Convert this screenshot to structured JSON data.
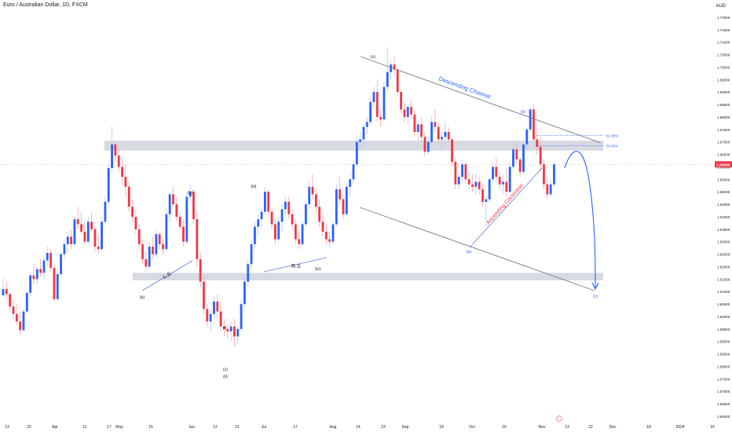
{
  "header": {
    "title": "Euro / Australian Dollar, 1D, FXCM",
    "currency": "AUD"
  },
  "colors": {
    "up": "#2962ff",
    "down": "#f23645",
    "up_wick": "#b4c4ff",
    "down_wick": "#f7a1a8",
    "zone": "#d1d4dc",
    "annotation_blue": "#2962ff",
    "annotation_red": "#f23645",
    "line": "#131722"
  },
  "chart_data": {
    "type": "candlestick",
    "title": "Euro / Australian Dollar, 1D, FXCM",
    "y_axis": {
      "currency": "AUD",
      "range": [
        1.56,
        1.725
      ],
      "ticks": [
        "1.72000",
        "1.71500",
        "1.71000",
        "1.70500",
        "1.70000",
        "1.69500",
        "1.69000",
        "1.68500",
        "1.68000",
        "1.67500",
        "1.67000",
        "1.66500",
        "1.66000",
        "1.65500",
        "1.65000",
        "1.64500",
        "1.64000",
        "1.63500",
        "1.63000",
        "1.62500",
        "1.62000",
        "1.61500",
        "1.61000",
        "1.60500",
        "1.60000",
        "1.59500",
        "1.59000",
        "1.58500",
        "1.58000",
        "1.57500",
        "1.57000",
        "1.56500",
        "1.56000"
      ]
    },
    "x_axis": {
      "tick_labels": [
        "13",
        "22",
        "Apr",
        "11",
        "17",
        "May",
        "15",
        "Jun",
        "12",
        "21",
        "Jul",
        "17",
        "Aug",
        "14",
        "23",
        "Sep",
        "18",
        "Oct",
        "16",
        "Nov",
        "13",
        "22",
        "Dec",
        "18",
        "2024",
        "15"
      ]
    },
    "last_price": "1.66099",
    "zones": [
      {
        "name": "resistance-zone",
        "from": 1.6665,
        "to": 1.6705
      },
      {
        "name": "support-zone",
        "from": 1.6145,
        "to": 1.6175
      }
    ],
    "levels": [
      {
        "label": "61.80%",
        "price": 1.6725
      },
      {
        "label": "50.00%",
        "price": 1.6685
      }
    ],
    "annotations": {
      "descending_channel": "Descending Channel",
      "ascending_correction": "Ascending Correction",
      "ls": "L.S",
      "rs": "R.S",
      "wave_labels": [
        "(a)",
        "(b)",
        "(iii)",
        "(iv)",
        "(v)",
        "(i)",
        "(c)",
        "(ii)",
        "(b)",
        "(a)",
        "(c)"
      ]
    },
    "candles": [
      [
        1.6085,
        1.6155,
        1.6075,
        1.611
      ],
      [
        1.611,
        1.614,
        1.607,
        1.609
      ],
      [
        1.609,
        1.6095,
        1.602,
        1.604
      ],
      [
        1.604,
        1.607,
        1.599,
        1.601
      ],
      [
        1.601,
        1.605,
        1.5965,
        1.598
      ],
      [
        1.598,
        1.602,
        1.5925,
        1.5945
      ],
      [
        1.5945,
        1.603,
        1.594,
        1.602
      ],
      [
        1.602,
        1.6105,
        1.601,
        1.6095
      ],
      [
        1.6095,
        1.6175,
        1.608,
        1.6165
      ],
      [
        1.6165,
        1.621,
        1.613,
        1.615
      ],
      [
        1.615,
        1.62,
        1.613,
        1.619
      ],
      [
        1.619,
        1.623,
        1.616,
        1.6175
      ],
      [
        1.6175,
        1.624,
        1.615,
        1.6225
      ],
      [
        1.6225,
        1.628,
        1.62,
        1.6255
      ],
      [
        1.6255,
        1.627,
        1.618,
        1.6195
      ],
      [
        1.6195,
        1.621,
        1.606,
        1.607
      ],
      [
        1.607,
        1.619,
        1.606,
        1.617
      ],
      [
        1.617,
        1.626,
        1.616,
        1.625
      ],
      [
        1.625,
        1.631,
        1.623,
        1.629
      ],
      [
        1.629,
        1.634,
        1.626,
        1.632
      ],
      [
        1.632,
        1.635,
        1.627,
        1.629
      ],
      [
        1.629,
        1.64,
        1.628,
        1.639
      ],
      [
        1.639,
        1.644,
        1.635,
        1.637
      ],
      [
        1.637,
        1.642,
        1.633,
        1.634
      ],
      [
        1.634,
        1.638,
        1.629,
        1.63
      ],
      [
        1.63,
        1.64,
        1.629,
        1.638
      ],
      [
        1.638,
        1.642,
        1.634,
        1.635
      ],
      [
        1.635,
        1.636,
        1.626,
        1.628
      ],
      [
        1.628,
        1.633,
        1.625,
        1.627
      ],
      [
        1.627,
        1.64,
        1.626,
        1.638
      ],
      [
        1.638,
        1.648,
        1.637,
        1.646
      ],
      [
        1.646,
        1.661,
        1.645,
        1.6595
      ],
      [
        1.6595,
        1.676,
        1.658,
        1.669
      ],
      [
        1.669,
        1.67,
        1.662,
        1.6645
      ],
      [
        1.6645,
        1.667,
        1.658,
        1.66
      ],
      [
        1.66,
        1.664,
        1.653,
        1.656
      ],
      [
        1.656,
        1.661,
        1.648,
        1.652
      ],
      [
        1.652,
        1.654,
        1.642,
        1.644
      ],
      [
        1.644,
        1.647,
        1.638,
        1.64
      ],
      [
        1.64,
        1.643,
        1.633,
        1.635
      ],
      [
        1.635,
        1.637,
        1.627,
        1.629
      ],
      [
        1.629,
        1.631,
        1.621,
        1.623
      ],
      [
        1.623,
        1.626,
        1.618,
        1.62
      ],
      [
        1.62,
        1.63,
        1.619,
        1.628
      ],
      [
        1.628,
        1.632,
        1.623,
        1.625
      ],
      [
        1.625,
        1.635,
        1.624,
        1.633
      ],
      [
        1.633,
        1.634,
        1.627,
        1.629
      ],
      [
        1.629,
        1.631,
        1.625,
        1.627
      ],
      [
        1.627,
        1.643,
        1.626,
        1.641
      ],
      [
        1.641,
        1.65,
        1.638,
        1.649
      ],
      [
        1.649,
        1.652,
        1.644,
        1.645
      ],
      [
        1.645,
        1.648,
        1.638,
        1.64
      ],
      [
        1.64,
        1.642,
        1.635,
        1.636
      ],
      [
        1.636,
        1.639,
        1.628,
        1.63
      ],
      [
        1.63,
        1.65,
        1.629,
        1.648
      ],
      [
        1.648,
        1.653,
        1.646,
        1.65
      ],
      [
        1.65,
        1.651,
        1.637,
        1.639
      ],
      [
        1.639,
        1.642,
        1.62,
        1.623
      ],
      [
        1.623,
        1.626,
        1.612,
        1.614
      ],
      [
        1.614,
        1.616,
        1.601,
        1.603
      ],
      [
        1.603,
        1.605,
        1.596,
        1.598
      ],
      [
        1.598,
        1.603,
        1.594,
        1.601
      ],
      [
        1.601,
        1.608,
        1.599,
        1.606
      ],
      [
        1.606,
        1.609,
        1.599,
        1.602
      ],
      [
        1.602,
        1.606,
        1.594,
        1.596
      ],
      [
        1.596,
        1.599,
        1.592,
        1.595
      ],
      [
        1.595,
        1.597,
        1.591,
        1.594
      ],
      [
        1.594,
        1.598,
        1.59,
        1.596
      ],
      [
        1.596,
        1.599,
        1.588,
        1.592
      ],
      [
        1.592,
        1.596,
        1.589,
        1.595
      ],
      [
        1.595,
        1.607,
        1.594,
        1.605
      ],
      [
        1.605,
        1.616,
        1.604,
        1.614
      ],
      [
        1.614,
        1.623,
        1.612,
        1.621
      ],
      [
        1.621,
        1.631,
        1.619,
        1.629
      ],
      [
        1.629,
        1.638,
        1.627,
        1.636
      ],
      [
        1.636,
        1.641,
        1.632,
        1.639
      ],
      [
        1.639,
        1.644,
        1.635,
        1.642
      ],
      [
        1.642,
        1.652,
        1.641,
        1.65
      ],
      [
        1.65,
        1.651,
        1.64,
        1.642
      ],
      [
        1.642,
        1.644,
        1.635,
        1.637
      ],
      [
        1.637,
        1.639,
        1.629,
        1.631
      ],
      [
        1.631,
        1.64,
        1.63,
        1.638
      ],
      [
        1.638,
        1.645,
        1.634,
        1.643
      ],
      [
        1.643,
        1.648,
        1.64,
        1.646
      ],
      [
        1.646,
        1.648,
        1.639,
        1.641
      ],
      [
        1.641,
        1.643,
        1.635,
        1.637
      ],
      [
        1.637,
        1.639,
        1.629,
        1.631
      ],
      [
        1.631,
        1.634,
        1.627,
        1.629
      ],
      [
        1.629,
        1.638,
        1.628,
        1.637
      ],
      [
        1.637,
        1.646,
        1.636,
        1.645
      ],
      [
        1.645,
        1.654,
        1.643,
        1.652
      ],
      [
        1.652,
        1.657,
        1.647,
        1.649
      ],
      [
        1.649,
        1.651,
        1.642,
        1.644
      ],
      [
        1.644,
        1.647,
        1.636,
        1.638
      ],
      [
        1.638,
        1.641,
        1.632,
        1.634
      ],
      [
        1.634,
        1.637,
        1.629,
        1.631
      ],
      [
        1.631,
        1.634,
        1.628,
        1.63
      ],
      [
        1.63,
        1.638,
        1.629,
        1.637
      ],
      [
        1.637,
        1.653,
        1.636,
        1.651
      ],
      [
        1.651,
        1.656,
        1.645,
        1.647
      ],
      [
        1.647,
        1.649,
        1.639,
        1.641
      ],
      [
        1.641,
        1.653,
        1.64,
        1.652
      ],
      [
        1.652,
        1.657,
        1.648,
        1.655
      ],
      [
        1.655,
        1.663,
        1.653,
        1.661
      ],
      [
        1.661,
        1.672,
        1.66,
        1.67
      ],
      [
        1.67,
        1.674,
        1.667,
        1.671
      ],
      [
        1.671,
        1.677,
        1.669,
        1.676
      ],
      [
        1.676,
        1.68,
        1.673,
        1.678
      ],
      [
        1.678,
        1.688,
        1.677,
        1.686
      ],
      [
        1.686,
        1.692,
        1.683,
        1.69
      ],
      [
        1.69,
        1.695,
        1.678,
        1.68
      ],
      [
        1.68,
        1.683,
        1.676,
        1.679
      ],
      [
        1.679,
        1.694,
        1.678,
        1.692
      ],
      [
        1.692,
        1.708,
        1.69,
        1.698
      ],
      [
        1.698,
        1.703,
        1.695,
        1.701
      ],
      [
        1.701,
        1.704,
        1.697,
        1.699
      ],
      [
        1.699,
        1.7,
        1.688,
        1.69
      ],
      [
        1.69,
        1.691,
        1.681,
        1.683
      ],
      [
        1.683,
        1.686,
        1.678,
        1.68
      ],
      [
        1.68,
        1.685,
        1.677,
        1.684
      ],
      [
        1.684,
        1.687,
        1.679,
        1.681
      ],
      [
        1.681,
        1.683,
        1.672,
        1.674
      ],
      [
        1.674,
        1.679,
        1.67,
        1.677
      ],
      [
        1.677,
        1.68,
        1.67,
        1.672
      ],
      [
        1.672,
        1.674,
        1.664,
        1.666
      ],
      [
        1.666,
        1.672,
        1.665,
        1.67
      ],
      [
        1.67,
        1.68,
        1.669,
        1.678
      ],
      [
        1.678,
        1.683,
        1.674,
        1.676
      ],
      [
        1.676,
        1.678,
        1.669,
        1.671
      ],
      [
        1.671,
        1.674,
        1.667,
        1.672
      ],
      [
        1.672,
        1.678,
        1.669,
        1.674
      ],
      [
        1.674,
        1.676,
        1.67,
        1.671
      ],
      [
        1.671,
        1.672,
        1.66,
        1.662
      ],
      [
        1.662,
        1.664,
        1.651,
        1.653
      ],
      [
        1.653,
        1.658,
        1.651,
        1.656
      ],
      [
        1.656,
        1.663,
        1.654,
        1.661
      ],
      [
        1.661,
        1.662,
        1.653,
        1.655
      ],
      [
        1.655,
        1.658,
        1.651,
        1.653
      ],
      [
        1.653,
        1.657,
        1.65,
        1.652
      ],
      [
        1.652,
        1.657,
        1.649,
        1.654
      ],
      [
        1.654,
        1.656,
        1.649,
        1.651
      ],
      [
        1.651,
        1.653,
        1.644,
        1.646
      ],
      [
        1.646,
        1.648,
        1.636,
        1.647
      ],
      [
        1.647,
        1.656,
        1.646,
        1.655
      ],
      [
        1.655,
        1.662,
        1.653,
        1.66
      ],
      [
        1.66,
        1.664,
        1.654,
        1.656
      ],
      [
        1.656,
        1.658,
        1.651,
        1.653
      ],
      [
        1.653,
        1.657,
        1.649,
        1.654
      ],
      [
        1.654,
        1.659,
        1.648,
        1.65
      ],
      [
        1.65,
        1.662,
        1.649,
        1.66
      ],
      [
        1.66,
        1.668,
        1.659,
        1.667
      ],
      [
        1.667,
        1.669,
        1.661,
        1.663
      ],
      [
        1.663,
        1.664,
        1.656,
        1.658
      ],
      [
        1.658,
        1.67,
        1.657,
        1.669
      ],
      [
        1.669,
        1.676,
        1.667,
        1.675
      ],
      [
        1.675,
        1.684,
        1.674,
        1.683
      ],
      [
        1.683,
        1.685,
        1.67,
        1.671
      ],
      [
        1.671,
        1.676,
        1.665,
        1.668
      ],
      [
        1.668,
        1.672,
        1.658,
        1.661
      ],
      [
        1.661,
        1.663,
        1.651,
        1.653
      ],
      [
        1.653,
        1.656,
        1.647,
        1.649
      ],
      [
        1.649,
        1.655,
        1.648,
        1.653
      ],
      [
        1.653,
        1.662,
        1.652,
        1.661
      ]
    ]
  }
}
